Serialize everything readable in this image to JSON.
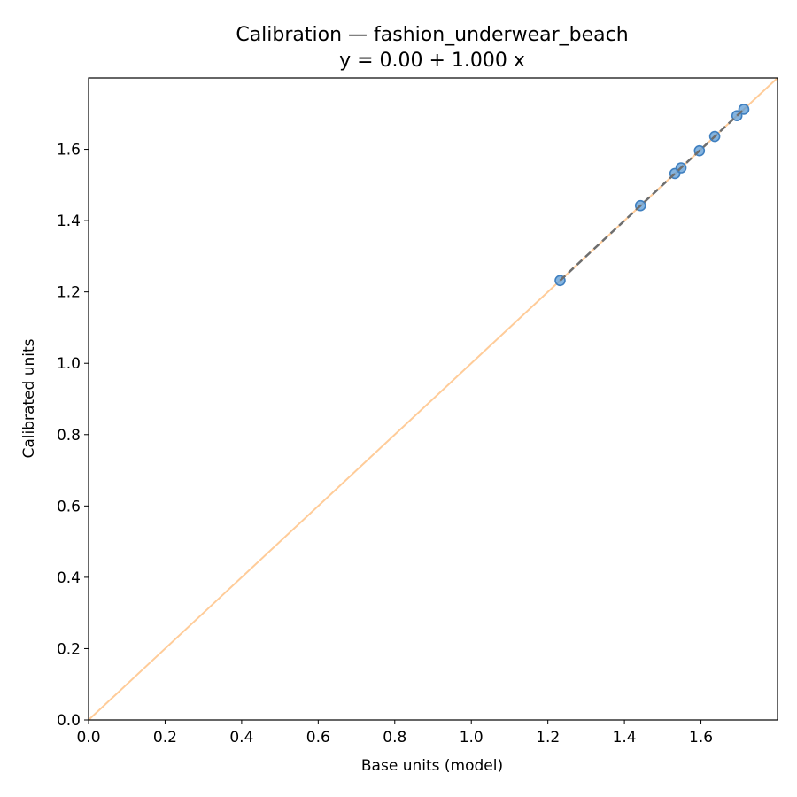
{
  "chart_data": {
    "type": "scatter",
    "title": "Calibration — fashion_underwear_beach",
    "subtitle": "y = 0.00 + 1.000 x",
    "xlabel": "Base units (model)",
    "ylabel": "Calibrated units",
    "xlim": [
      0.0,
      1.8
    ],
    "ylim": [
      0.0,
      1.8
    ],
    "x_ticks": [
      "0.0",
      "0.2",
      "0.4",
      "0.6",
      "0.8",
      "1.0",
      "1.2",
      "1.4",
      "1.6"
    ],
    "y_ticks": [
      "0.0",
      "0.2",
      "0.4",
      "0.6",
      "0.8",
      "1.0",
      "1.2",
      "1.4",
      "1.6"
    ],
    "grid": false,
    "identity_line": {
      "from": [
        0.0,
        0.0
      ],
      "to": [
        1.8,
        1.8
      ],
      "color": "#ffcc99"
    },
    "fit_line": {
      "intercept": 0.0,
      "slope": 1.0,
      "x_range": [
        1.232,
        1.712
      ],
      "color": "#6e6e6e",
      "style": "dashed"
    },
    "series": [
      {
        "marker_color": "#5b9bd5",
        "points": [
          {
            "x": 1.232,
            "y": 1.232
          },
          {
            "x": 1.442,
            "y": 1.442
          },
          {
            "x": 1.532,
            "y": 1.532
          },
          {
            "x": 1.548,
            "y": 1.548
          },
          {
            "x": 1.596,
            "y": 1.596
          },
          {
            "x": 1.636,
            "y": 1.636
          },
          {
            "x": 1.694,
            "y": 1.694
          },
          {
            "x": 1.712,
            "y": 1.712
          }
        ]
      }
    ]
  }
}
